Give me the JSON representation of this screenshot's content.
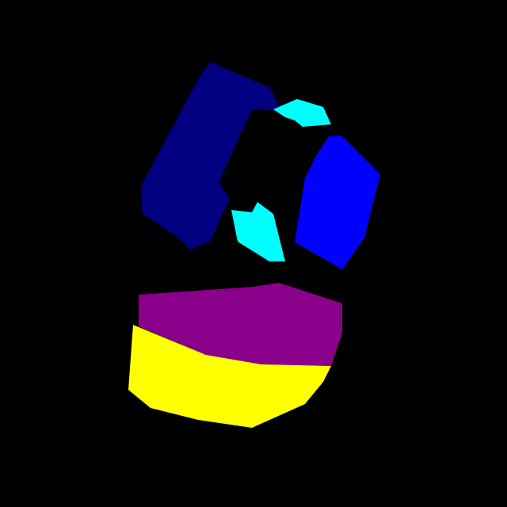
{
  "background": "#000000",
  "regions": [
    {
      "name": "navy-region",
      "color": "#000080"
    },
    {
      "name": "cyan-region-upper",
      "color": "#00FFFF"
    },
    {
      "name": "cyan-region-lower",
      "color": "#00FFFF"
    },
    {
      "name": "blue-region",
      "color": "#0000FF"
    },
    {
      "name": "purple-region",
      "color": "#8B008B"
    },
    {
      "name": "yellow-region",
      "color": "#FFFF00"
    }
  ]
}
